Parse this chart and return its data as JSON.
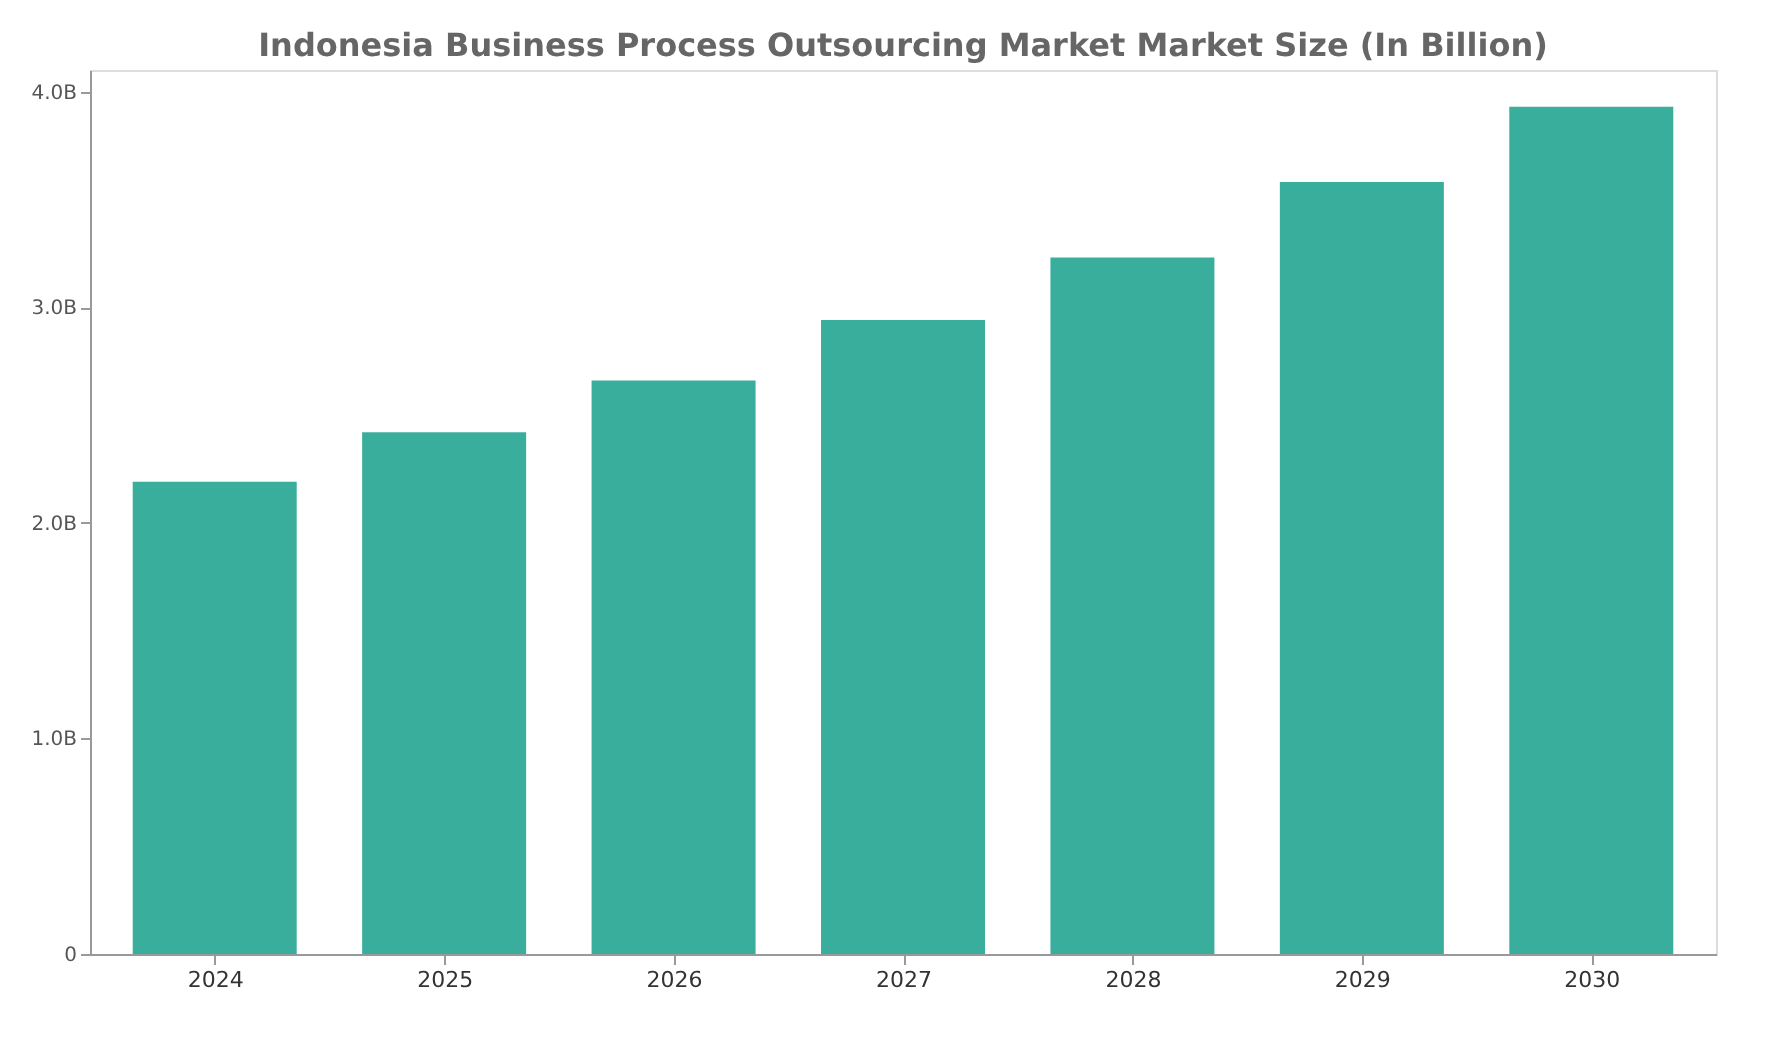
{
  "chart_data": {
    "type": "bar",
    "title": "Indonesia Business Process Outsourcing Market Market Size (In Billion)",
    "categories": [
      "2024",
      "2025",
      "2026",
      "2027",
      "2028",
      "2029",
      "2030"
    ],
    "values": [
      2.19,
      2.42,
      2.66,
      2.94,
      3.23,
      3.58,
      3.93
    ],
    "color": "#3aae9c",
    "ylim": [
      0,
      4.1
    ],
    "yticks": [
      0,
      {
        "value": 1,
        "label": "1.0B"
      },
      {
        "value": 2,
        "label": "2.0B"
      },
      {
        "value": 3,
        "label": "3.0B"
      },
      {
        "value": 4,
        "label": "4.0B"
      }
    ],
    "grid": false
  }
}
